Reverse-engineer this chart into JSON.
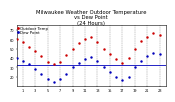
{
  "title": "Milwaukee Weather Outdoor Temperature\nvs Dew Point\n(24 Hours)",
  "title_fontsize": 3.8,
  "background_color": "#ffffff",
  "temp_color": "#cc0000",
  "dew_color": "#0000bb",
  "ylim": [
    10,
    75
  ],
  "xlim": [
    0,
    24
  ],
  "tick_fontsize": 2.5,
  "yticks": [
    20,
    30,
    40,
    50,
    60,
    70
  ],
  "xticks": [
    1,
    3,
    5,
    7,
    9,
    11,
    13,
    15,
    17,
    19,
    21,
    23
  ],
  "xtick_labels": [
    "1",
    "3",
    "5",
    "7",
    "9",
    "11",
    "13",
    "15",
    "17",
    "19",
    "21",
    "23"
  ],
  "vgrid_positions": [
    1,
    3,
    5,
    7,
    9,
    11,
    13,
    15,
    17,
    19,
    21,
    23
  ],
  "temp_x": [
    0,
    1,
    2,
    3,
    4,
    5,
    6,
    7,
    8,
    9,
    10,
    11,
    12,
    13,
    14,
    15,
    16,
    17,
    18,
    19,
    20,
    21,
    22,
    23
  ],
  "temp_y": [
    60,
    57,
    52,
    47,
    42,
    36,
    33,
    36,
    43,
    50,
    56,
    60,
    62,
    57,
    50,
    44,
    39,
    35,
    40,
    50,
    58,
    63,
    67,
    65
  ],
  "dew_x": [
    0,
    1,
    2,
    3,
    4,
    5,
    6,
    7,
    8,
    9,
    10,
    11,
    12,
    13,
    14,
    15,
    16,
    17,
    18,
    19,
    20,
    21,
    22,
    23
  ],
  "dew_y": [
    40,
    37,
    33,
    28,
    23,
    17,
    14,
    17,
    23,
    30,
    35,
    39,
    41,
    37,
    30,
    25,
    20,
    16,
    20,
    30,
    37,
    42,
    45,
    44
  ],
  "marker_size": 1.5,
  "legend_temp": "Outdoor Temp",
  "legend_dew": "Dew Point",
  "legend_fontsize": 2.8,
  "hline_y": 32,
  "hline_color": "#0000bb",
  "hline_linewidth": 0.6
}
